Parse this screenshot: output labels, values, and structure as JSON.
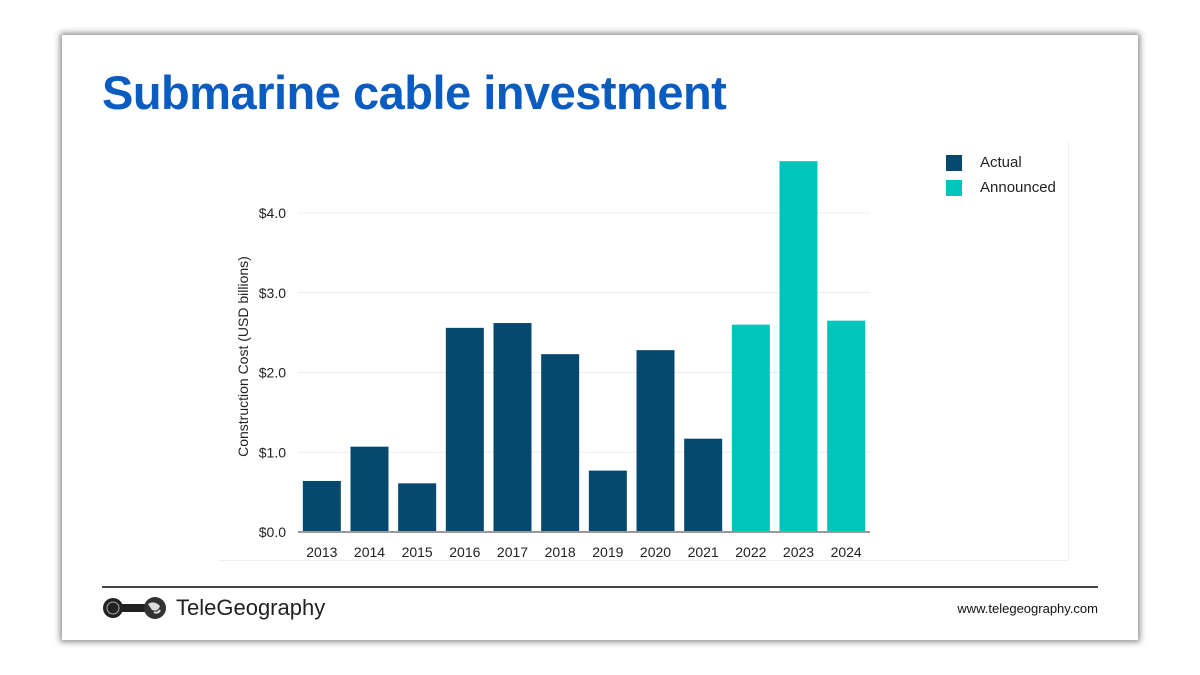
{
  "slide": {
    "title": "Submarine cable investment",
    "brand": "TeleGeography",
    "url": "www.telegeography.com"
  },
  "colors": {
    "title": "#0a5cc0",
    "actual": "#054a6e",
    "announced": "#00c5bb"
  },
  "chart_data": {
    "type": "bar",
    "title": "",
    "xlabel": "",
    "ylabel": "Construction Cost (USD billions)",
    "categories": [
      "2013",
      "2014",
      "2015",
      "2016",
      "2017",
      "2018",
      "2019",
      "2020",
      "2021",
      "2022",
      "2023",
      "2024"
    ],
    "series": [
      {
        "name": "Actual",
        "values": [
          0.64,
          1.07,
          0.61,
          2.56,
          2.62,
          2.23,
          0.77,
          2.28,
          1.17,
          null,
          null,
          null
        ]
      },
      {
        "name": "Announced",
        "values": [
          null,
          null,
          null,
          null,
          null,
          null,
          null,
          null,
          null,
          2.6,
          4.65,
          2.65
        ]
      }
    ],
    "yticks": [
      "$0.0",
      "$1.0",
      "$2.0",
      "$3.0",
      "$4.0"
    ],
    "ytick_values": [
      0,
      1,
      2,
      3,
      4
    ],
    "ylim": [
      0,
      4.7
    ],
    "grid": true,
    "legend": "top-right"
  }
}
